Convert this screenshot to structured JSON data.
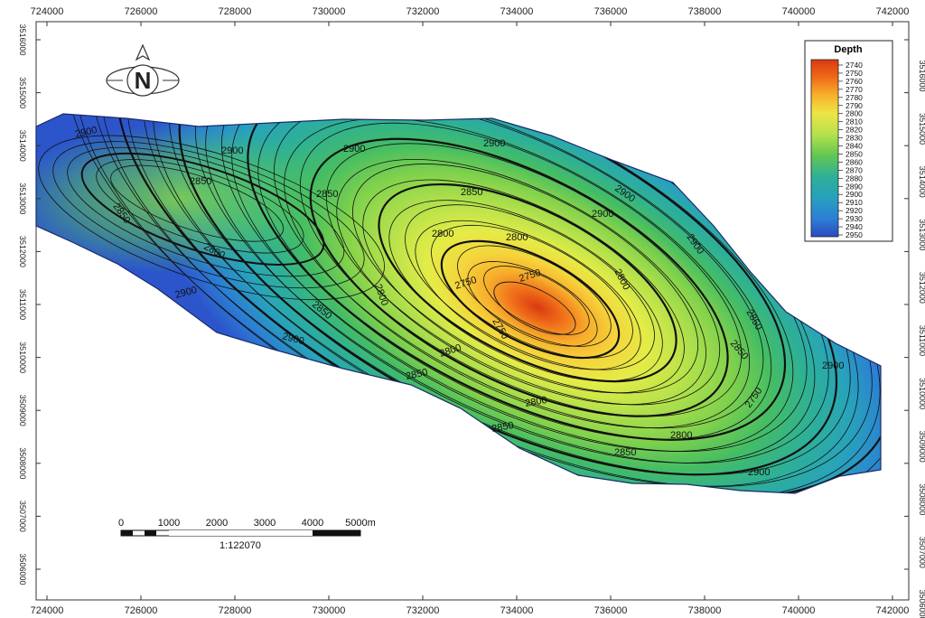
{
  "map": {
    "x_ticks": [
      "724000",
      "726000",
      "728000",
      "730000",
      "732000",
      "734000",
      "736000",
      "738000",
      "740000",
      "742000"
    ],
    "y_ticks": [
      "3516000",
      "3515000",
      "3514000",
      "3513000",
      "3512000",
      "3511000",
      "3510000",
      "3509000",
      "3508000",
      "3507000",
      "3506000"
    ],
    "right_y_ticks": [
      "3516000",
      "3515000",
      "3514000",
      "3513000",
      "3512000",
      "3511000",
      "3510000",
      "3509000",
      "3508000",
      "3507000",
      "3506000"
    ]
  },
  "legend": {
    "title": "Depth",
    "values": [
      "2740",
      "2750",
      "2760",
      "2770",
      "2780",
      "2790",
      "2800",
      "2810",
      "2820",
      "2830",
      "2840",
      "2850",
      "2860",
      "2870",
      "2880",
      "2890",
      "2900",
      "2910",
      "2920",
      "2930",
      "2940",
      "2950"
    ],
    "colors": [
      "#d93a10",
      "#e85d14",
      "#f28a20",
      "#f7ae2c",
      "#f5cf3a",
      "#eee445",
      "#dcec48",
      "#c2e64a",
      "#a2dc4a",
      "#7fd14c",
      "#5cc653",
      "#43bd66",
      "#36b67e",
      "#2eb096",
      "#2aa9aa",
      "#27a0bd",
      "#2894cb",
      "#2a86d3",
      "#2c77d6",
      "#2d67d4",
      "#2d57cd",
      "#2c48c2"
    ]
  },
  "contour_labels": [
    {
      "text": "2900"
    },
    {
      "text": "2900"
    },
    {
      "text": "2900"
    },
    {
      "text": "2900"
    },
    {
      "text": "2850"
    },
    {
      "text": "2850"
    },
    {
      "text": "2850"
    },
    {
      "text": "2850"
    },
    {
      "text": "2800"
    },
    {
      "text": "2800"
    },
    {
      "text": "2800"
    },
    {
      "text": "2800"
    },
    {
      "text": "2800"
    },
    {
      "text": "2750"
    },
    {
      "text": "2750"
    },
    {
      "text": "2750"
    },
    {
      "text": "2800"
    },
    {
      "text": "2900"
    },
    {
      "text": "2850"
    },
    {
      "text": "2900"
    },
    {
      "text": "2850"
    },
    {
      "text": "2800"
    },
    {
      "text": "2850"
    },
    {
      "text": "2900"
    },
    {
      "text": "2900"
    },
    {
      "text": "2900"
    },
    {
      "text": "2900"
    },
    {
      "text": "2850"
    },
    {
      "text": "2850"
    },
    {
      "text": "2800"
    },
    {
      "text": "2750"
    },
    {
      "text": "2900"
    },
    {
      "text": "2850"
    }
  ],
  "scale_bar": {
    "ticks": [
      "0",
      "1000",
      "2000",
      "3000",
      "4000",
      "5000m"
    ],
    "ratio": "1:122070"
  },
  "north_arrow": {
    "letter": "N"
  }
}
